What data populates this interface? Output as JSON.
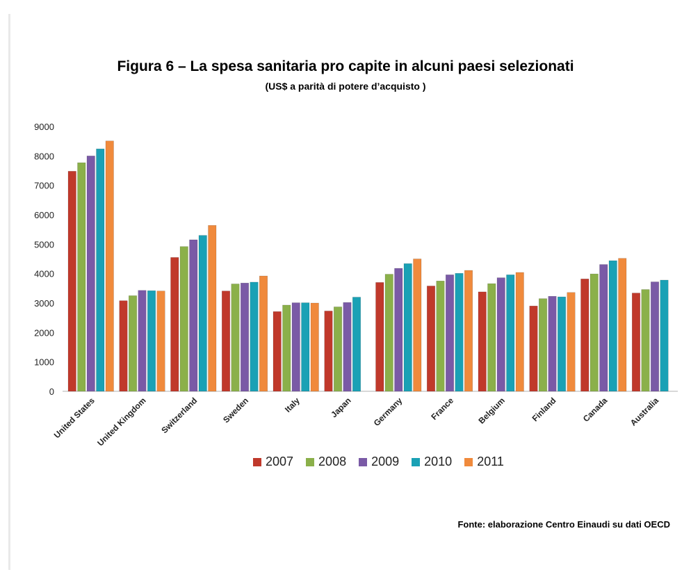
{
  "chart_data": {
    "type": "bar",
    "title": "Figura 6 – La spesa sanitaria pro capite in alcuni paesi selezionati",
    "subtitle": "(US$  a parità di potere d’acquisto )",
    "xlabel": "",
    "ylabel": "",
    "ylim": [
      0,
      9000
    ],
    "yticks": [
      "0",
      "1000",
      "2000",
      "3000",
      "4000",
      "5000",
      "6000",
      "7000",
      "8000",
      "9000"
    ],
    "grid": false,
    "legend_position": "bottom",
    "categories": [
      "United States",
      "United Kingdom",
      "Switzerland",
      "Sweden",
      "Italy",
      "Japan",
      "Germany",
      "France",
      "Belgium",
      "Finland",
      "Canada",
      "Australia"
    ],
    "series": [
      {
        "name": "2007",
        "color": "#c0392b",
        "values": [
          7480,
          3080,
          4550,
          3410,
          2710,
          2730,
          3700,
          3580,
          3380,
          2900,
          3820,
          3340
        ]
      },
      {
        "name": "2008",
        "color": "#8bb04a",
        "values": [
          7770,
          3250,
          4920,
          3650,
          2930,
          2870,
          3980,
          3750,
          3660,
          3150,
          3990,
          3460
        ]
      },
      {
        "name": "2009",
        "color": "#7a5aa6",
        "values": [
          8000,
          3430,
          5150,
          3680,
          3010,
          3020,
          4180,
          3960,
          3860,
          3230,
          4310,
          3720
        ]
      },
      {
        "name": "2010",
        "color": "#1aa1b5",
        "values": [
          8240,
          3420,
          5300,
          3710,
          3010,
          3200,
          4340,
          4010,
          3960,
          3210,
          4440,
          3780
        ]
      },
      {
        "name": "2011",
        "color": "#f08a3c",
        "values": [
          8510,
          3410,
          5640,
          3920,
          3000,
          null,
          4500,
          4110,
          4040,
          3360,
          4520,
          null
        ]
      }
    ]
  },
  "source": "Fonte: elaborazione Centro Einaudi su dati OECD"
}
